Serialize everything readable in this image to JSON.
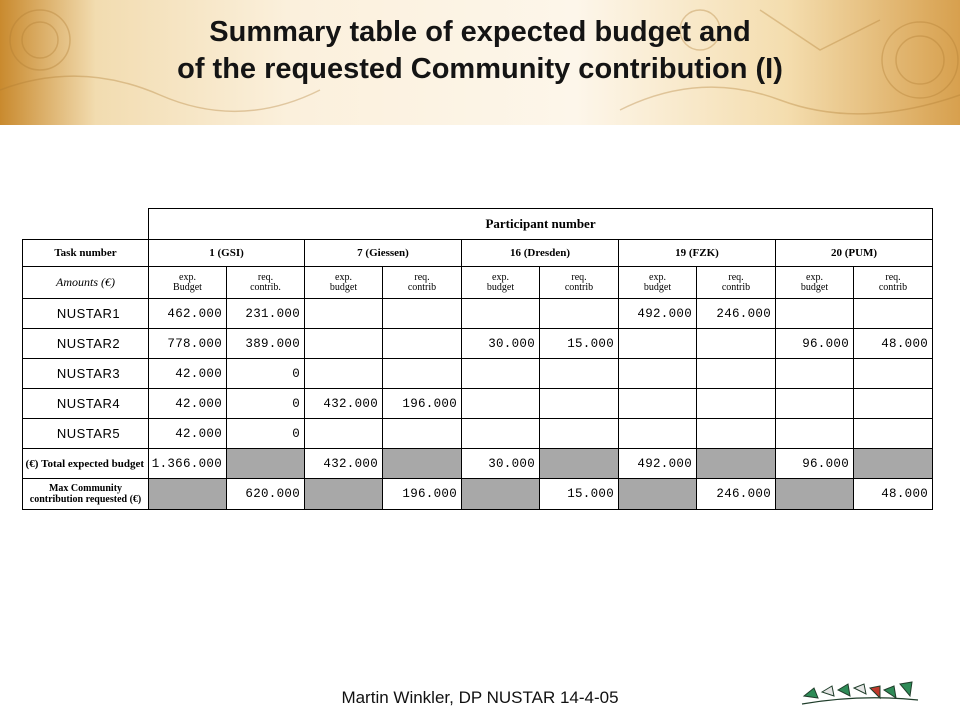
{
  "title": {
    "line1": "Summary table of expected budget and",
    "line2": "of the requested Community contribution (I)"
  },
  "table": {
    "participant_header": "Participant number",
    "task_header": "Task number",
    "participants": [
      "1 (GSI)",
      "7 (Giessen)",
      "16 (Dresden)",
      "19 (FZK)",
      "20 (PUM)"
    ],
    "amounts_label": "Amounts (€)",
    "subheaders": [
      [
        "exp.\nBudget",
        "req.\ncontrib."
      ],
      [
        "exp.\nbudget",
        "req.\ncontrib"
      ],
      [
        "exp.\nbudget",
        "req.\ncontrib"
      ],
      [
        "exp.\nbudget",
        "req.\ncontrib"
      ],
      [
        "exp.\nbudget",
        "req.\ncontrib"
      ]
    ],
    "rows": [
      {
        "task": "NUSTAR1",
        "cells": [
          "462.000",
          "231.000",
          "",
          "",
          "",
          "",
          "492.000",
          "246.000",
          "",
          ""
        ]
      },
      {
        "task": "NUSTAR2",
        "cells": [
          "778.000",
          "389.000",
          "",
          "",
          "30.000",
          "15.000",
          "",
          "",
          "96.000",
          "48.000"
        ]
      },
      {
        "task": "NUSTAR3",
        "cells": [
          "42.000",
          "0",
          "",
          "",
          "",
          "",
          "",
          "",
          "",
          ""
        ]
      },
      {
        "task": "NUSTAR4",
        "cells": [
          "42.000",
          "0",
          "432.000",
          "196.000",
          "",
          "",
          "",
          "",
          "",
          ""
        ]
      },
      {
        "task": "NUSTAR5",
        "cells": [
          "42.000",
          "0",
          "",
          "",
          "",
          "",
          "",
          "",
          "",
          ""
        ]
      }
    ],
    "total_label": "Total expected budget (€)",
    "totals": [
      "1.366.000",
      "",
      "432.000",
      "",
      "30.000",
      "",
      "492.000",
      "",
      "96.000",
      ""
    ],
    "max_label": "Max Community\ncontribution requested (€)",
    "max_values": [
      "",
      "620.000",
      "",
      "196.000",
      "",
      "15.000",
      "",
      "246.000",
      "",
      "48.000"
    ]
  },
  "footer": {
    "text": "Martin Winkler, DP NUSTAR 14-4-05"
  },
  "logo": {
    "name": "nustar-logo"
  },
  "colors": {
    "gray_cell": "#a8a8a8",
    "banner_light": "#fbf0dc",
    "banner_gold": "#d7a04e"
  }
}
